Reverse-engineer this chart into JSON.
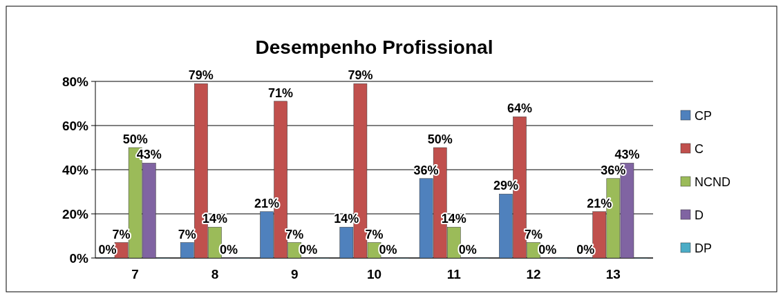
{
  "chart_data": {
    "type": "bar",
    "title": "Desempenho Profissional",
    "categories": [
      "7",
      "8",
      "9",
      "10",
      "11",
      "12",
      "13"
    ],
    "series": [
      {
        "name": "CP",
        "color": "#4f81bd",
        "values": [
          0,
          7,
          21,
          14,
          36,
          29,
          0
        ],
        "value_labels": [
          "0%",
          "7%",
          "21%",
          "14%",
          "36%",
          "29%",
          "0%"
        ]
      },
      {
        "name": "C",
        "color": "#c0504d",
        "values": [
          7,
          79,
          71,
          79,
          50,
          64,
          21
        ],
        "value_labels": [
          "7%",
          "79%",
          "71%",
          "79%",
          "50%",
          "64%",
          "21%"
        ]
      },
      {
        "name": "NCND",
        "color": "#9bbb59",
        "values": [
          50,
          14,
          7,
          7,
          14,
          7,
          36
        ],
        "value_labels": [
          "50%",
          "14%",
          "7%",
          "7%",
          "14%",
          "7%",
          "36%"
        ]
      },
      {
        "name": "D",
        "color": "#8064a2",
        "values": [
          43,
          0,
          0,
          0,
          0,
          0,
          43
        ],
        "value_labels": [
          "43%",
          "0%",
          "0%",
          "0%",
          "0%",
          "0%",
          "43%"
        ]
      },
      {
        "name": "DP",
        "color": "#4bacc6",
        "values": [
          0,
          0,
          0,
          0,
          0,
          0,
          0
        ]
      }
    ],
    "ylim": [
      0,
      80
    ],
    "yticks": [
      {
        "value": 0,
        "label": "0%"
      },
      {
        "value": 20,
        "label": "20%"
      },
      {
        "value": 40,
        "label": "40%"
      },
      {
        "value": 60,
        "label": "60%"
      },
      {
        "value": 80,
        "label": "80%"
      }
    ],
    "grid": "y",
    "legend": "right"
  }
}
